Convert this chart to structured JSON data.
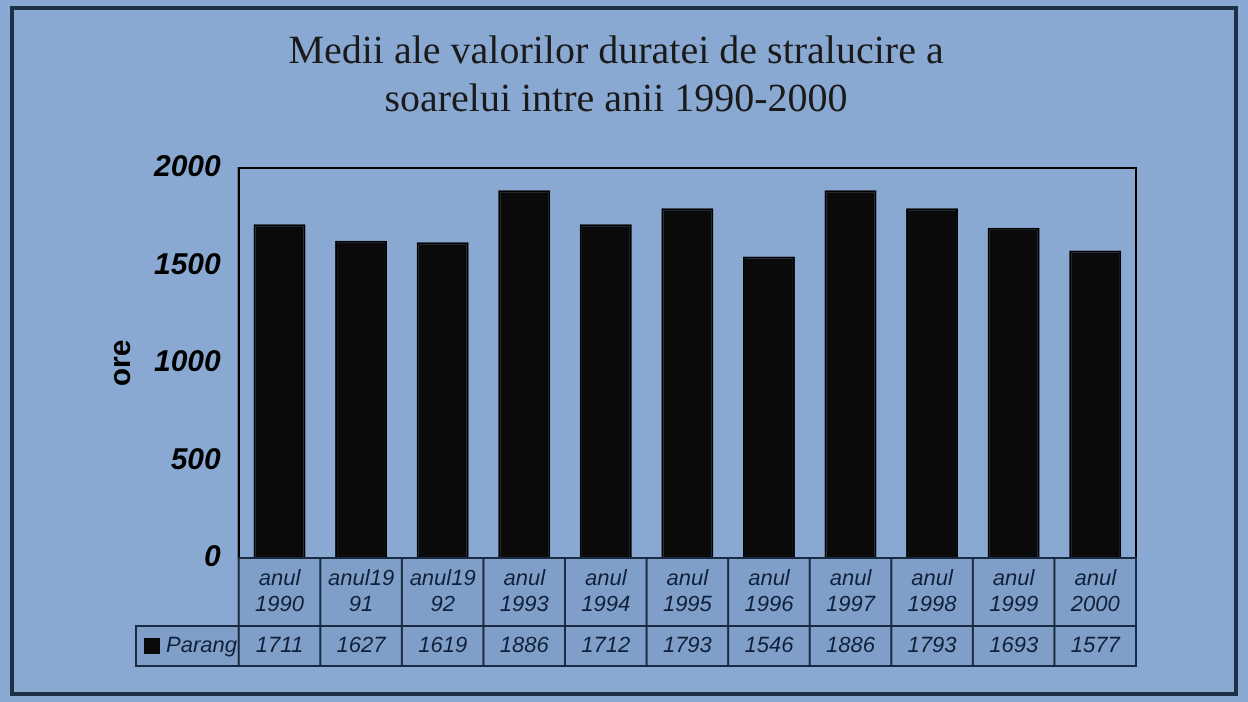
{
  "chart_data": {
    "type": "bar",
    "title": [
      "Medii ale valorilor duratei de stralucire a",
      "soarelui intre anii 1990-2000"
    ],
    "ylabel": "ore",
    "categories": [
      "anul 1990",
      "anul1991",
      "anul1992",
      "anul 1993",
      "anul 1994",
      "anul 1995",
      "anul 1996",
      "anul 1997",
      "anul 1998",
      "anul 1999",
      "anul 2000"
    ],
    "series": [
      {
        "name": "Parang",
        "color": "#0a0a0a",
        "values": [
          1711,
          1627,
          1619,
          1886,
          1712,
          1793,
          1546,
          1886,
          1793,
          1693,
          1577
        ]
      }
    ],
    "ylim": [
      0,
      2000
    ],
    "yticks": [
      0,
      500,
      1000,
      1500,
      2000
    ],
    "grid": false,
    "legend": "bottom left",
    "data_labels": true
  }
}
